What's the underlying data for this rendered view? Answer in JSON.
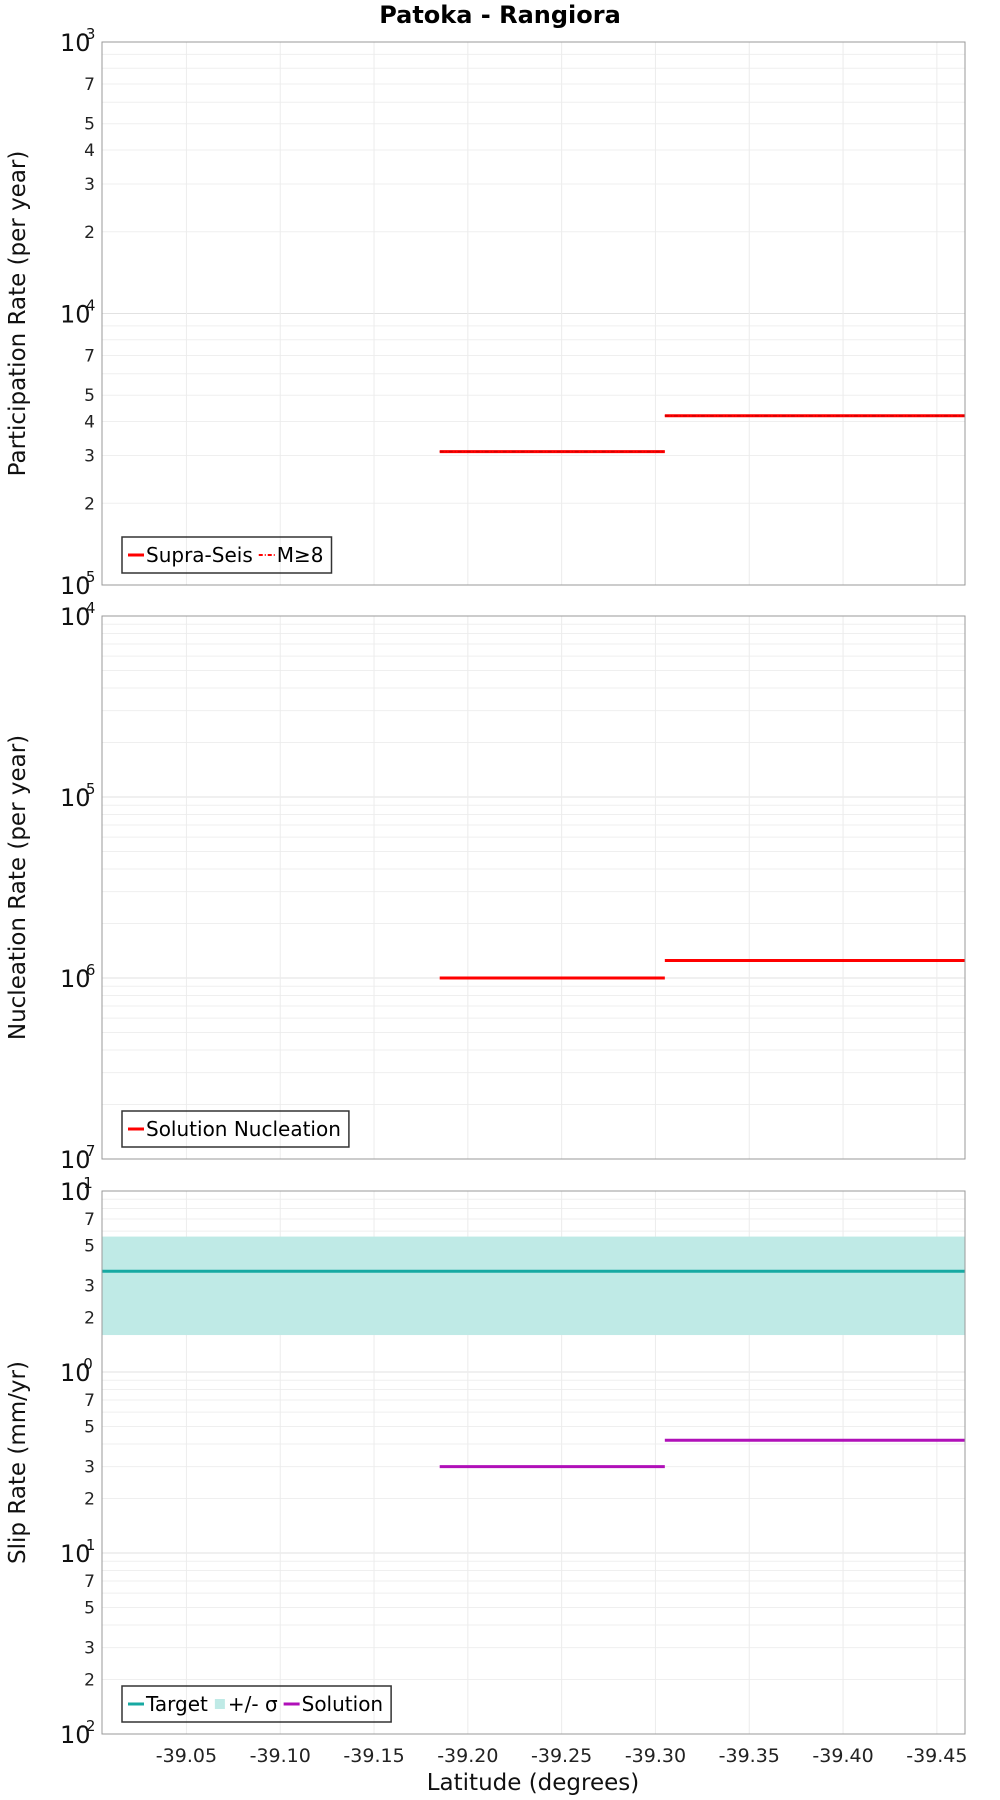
{
  "chart_data": {
    "title": "Patoka - Rangiora",
    "xlabel": "Latitude (degrees)",
    "xlim": [
      -39.005,
      -39.465
    ],
    "x_ticks": [
      -39.05,
      -39.1,
      -39.15,
      -39.2,
      -39.25,
      -39.3,
      -39.35,
      -39.4,
      -39.45
    ],
    "x_tick_labels": [
      "-39.05",
      "-39.10",
      "-39.15",
      "-39.20",
      "-39.25",
      "-39.30",
      "-39.35",
      "-39.40",
      "-39.45"
    ],
    "panels": [
      {
        "type": "line",
        "ylabel": "Participation Rate (per year)",
        "yscale": "log",
        "ylim": [
          1e-05,
          0.001
        ],
        "decades": [
          {
            "exp": -5
          },
          {
            "exp": -4
          },
          {
            "exp": -3
          }
        ],
        "minor_labels": [
          {
            "v": 2e-05,
            "t": "2"
          },
          {
            "v": 3e-05,
            "t": "3"
          },
          {
            "v": 4e-05,
            "t": "4"
          },
          {
            "v": 5e-05,
            "t": "5"
          },
          {
            "v": 7e-05,
            "t": "7"
          },
          {
            "v": 0.0002,
            "t": "2"
          },
          {
            "v": 0.0003,
            "t": "3"
          },
          {
            "v": 0.0004,
            "t": "4"
          },
          {
            "v": 0.0005,
            "t": "5"
          },
          {
            "v": 0.0007,
            "t": "7"
          }
        ],
        "series": [
          {
            "name": "Supra-Seis",
            "color": "#ff0000",
            "style": "solid",
            "segments": [
              {
                "x": [
                  -39.185,
                  -39.305
                ],
                "y": 3.1e-05
              },
              {
                "x": [
                  -39.305,
                  -39.465
                ],
                "y": 4.2e-05
              }
            ]
          },
          {
            "name": "M≥8",
            "color": "#ff0000",
            "style": "dashdot",
            "segments": [
              {
                "x": [
                  -39.185,
                  -39.305
                ],
                "y": 3.1e-05
              },
              {
                "x": [
                  -39.305,
                  -39.465
                ],
                "y": 4.2e-05
              }
            ]
          }
        ],
        "legend": {
          "placement": "bottom-left",
          "items": [
            {
              "label": "Supra-Seis",
              "color": "#ff0000",
              "kind": "line"
            },
            {
              "label": "M≥8",
              "color": "#ff0000",
              "kind": "dashdot"
            }
          ]
        }
      },
      {
        "type": "line",
        "ylabel": "Nucleation Rate (per year)",
        "yscale": "log",
        "ylim": [
          1e-07,
          0.0001
        ],
        "decades": [
          {
            "exp": -7
          },
          {
            "exp": -6
          },
          {
            "exp": -5
          },
          {
            "exp": -4
          }
        ],
        "minor_labels": [],
        "series": [
          {
            "name": "Solution Nucleation",
            "color": "#ff0000",
            "style": "solid",
            "segments": [
              {
                "x": [
                  -39.185,
                  -39.305
                ],
                "y": 1e-06
              },
              {
                "x": [
                  -39.305,
                  -39.465
                ],
                "y": 1.25e-06
              }
            ]
          }
        ],
        "legend": {
          "placement": "bottom-left",
          "items": [
            {
              "label": "Solution Nucleation",
              "color": "#ff0000",
              "kind": "line"
            }
          ]
        }
      },
      {
        "type": "line",
        "ylabel": "Slip Rate (mm/yr)",
        "yscale": "log",
        "ylim": [
          0.01,
          10
        ],
        "decades": [
          {
            "exp": -2
          },
          {
            "exp": -1
          },
          {
            "exp": 0
          },
          {
            "exp": 1
          }
        ],
        "minor_labels": [
          {
            "v": 0.02,
            "t": "2"
          },
          {
            "v": 0.03,
            "t": "3"
          },
          {
            "v": 0.05,
            "t": "5"
          },
          {
            "v": 0.07,
            "t": "7"
          },
          {
            "v": 0.2,
            "t": "2"
          },
          {
            "v": 0.3,
            "t": "3"
          },
          {
            "v": 0.5,
            "t": "5"
          },
          {
            "v": 0.7,
            "t": "7"
          },
          {
            "v": 2,
            "t": "2"
          },
          {
            "v": 3,
            "t": "3"
          },
          {
            "v": 5,
            "t": "5"
          },
          {
            "v": 7,
            "t": "7"
          }
        ],
        "band": {
          "name": "+/- σ",
          "color": "#bfeae6",
          "y": [
            1.6,
            5.6
          ],
          "x": [
            -39.005,
            -39.465
          ]
        },
        "series": [
          {
            "name": "Target",
            "color": "#17a9a2",
            "style": "solid",
            "segments": [
              {
                "x": [
                  -39.005,
                  -39.465
                ],
                "y": 3.6
              }
            ]
          },
          {
            "name": "Solution",
            "color": "#b010b8",
            "style": "solid",
            "segments": [
              {
                "x": [
                  -39.185,
                  -39.305
                ],
                "y": 0.3
              },
              {
                "x": [
                  -39.305,
                  -39.465
                ],
                "y": 0.42
              }
            ]
          }
        ],
        "legend": {
          "placement": "bottom-left",
          "items": [
            {
              "label": "Target",
              "color": "#17a9a2",
              "kind": "line"
            },
            {
              "label": "+/- σ",
              "color": "#bfeae6",
              "kind": "box"
            },
            {
              "label": "Solution",
              "color": "#b010b8",
              "kind": "line"
            }
          ]
        }
      }
    ]
  }
}
